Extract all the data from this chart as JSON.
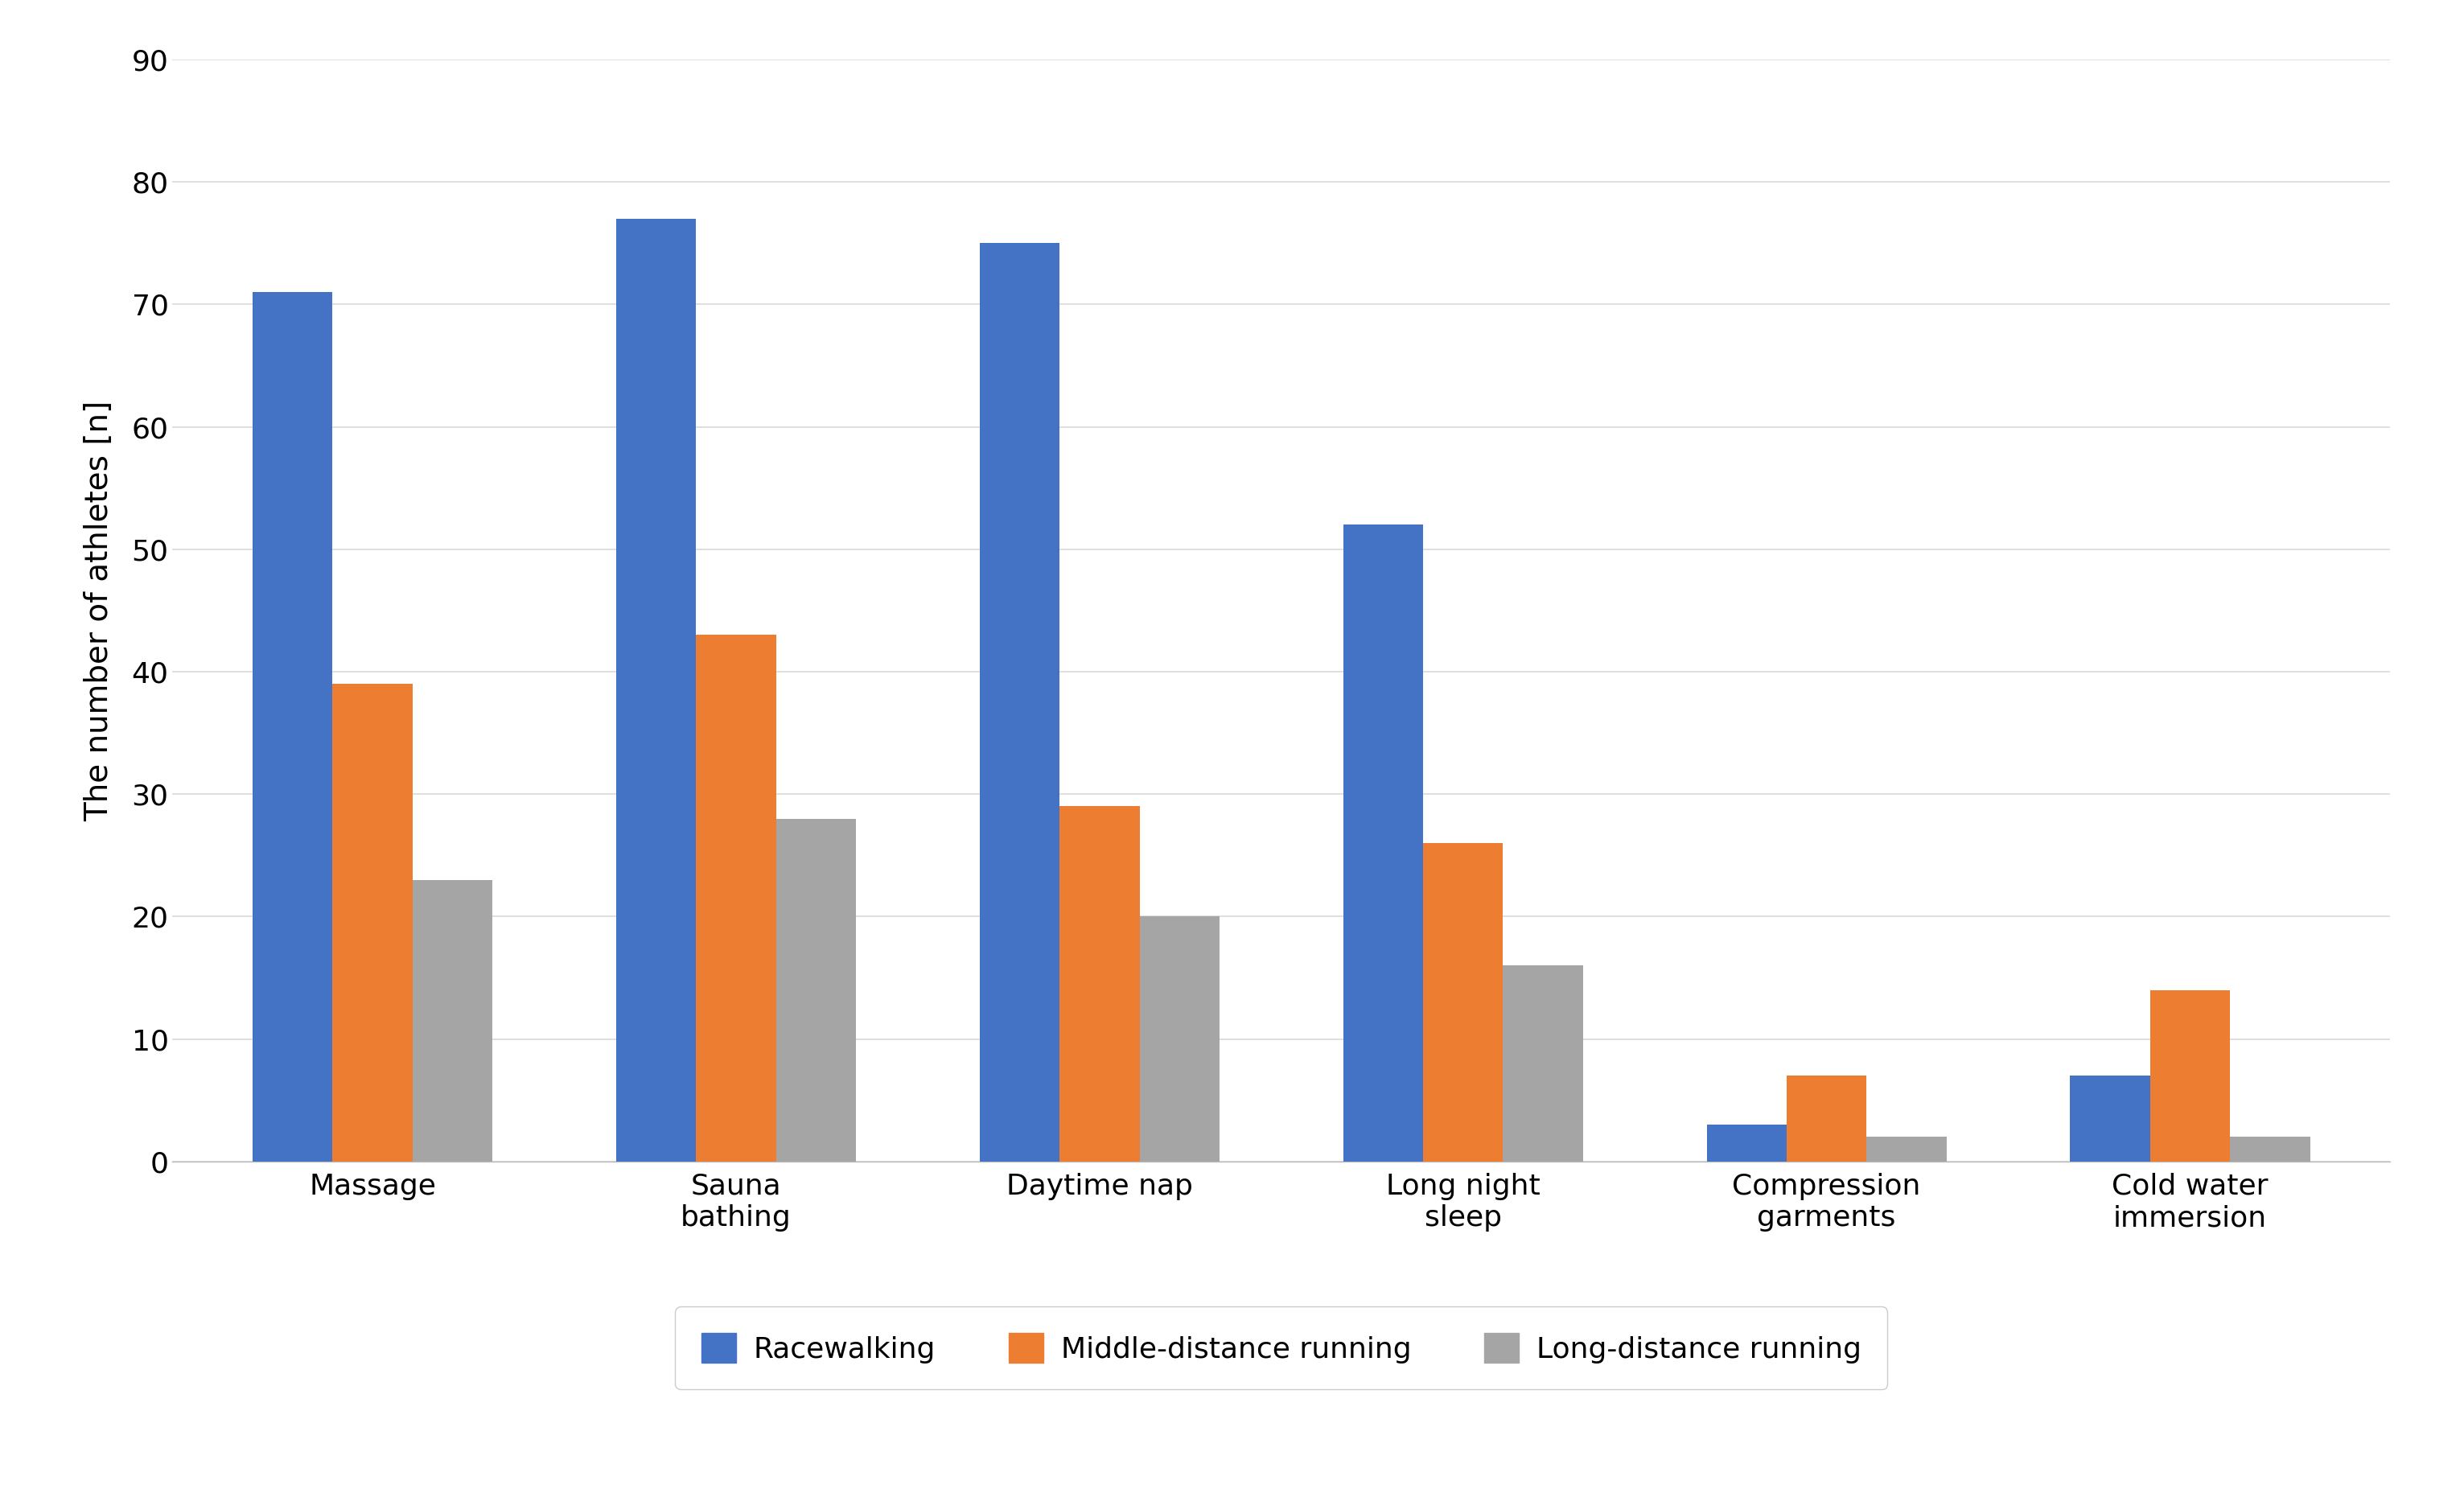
{
  "categories": [
    "Massage",
    "Sauna\nbathing",
    "Daytime nap",
    "Long night\nsleep",
    "Compression\ngarments",
    "Cold water\nimmersion"
  ],
  "series": {
    "Racewalking": [
      71,
      77,
      75,
      52,
      3,
      7
    ],
    "Middle-distance running": [
      39,
      43,
      29,
      26,
      7,
      14
    ],
    "Long-distance running": [
      23,
      28,
      20,
      16,
      2,
      2
    ]
  },
  "colors": {
    "Racewalking": "#4472C4",
    "Middle-distance running": "#ED7D31",
    "Long-distance running": "#A5A5A5"
  },
  "ylabel": "The number of athletes [n]",
  "ylim": [
    0,
    90
  ],
  "yticks": [
    0,
    10,
    20,
    30,
    40,
    50,
    60,
    70,
    80,
    90
  ],
  "legend_labels": [
    "Racewalking",
    "Middle-distance running",
    "Long-distance running"
  ],
  "background_color": "#FFFFFF",
  "grid_color": "#D9D9D9",
  "bar_width": 0.22,
  "ylabel_fontsize": 28,
  "tick_fontsize": 26,
  "legend_fontsize": 26,
  "xlabel_fontsize": 26
}
